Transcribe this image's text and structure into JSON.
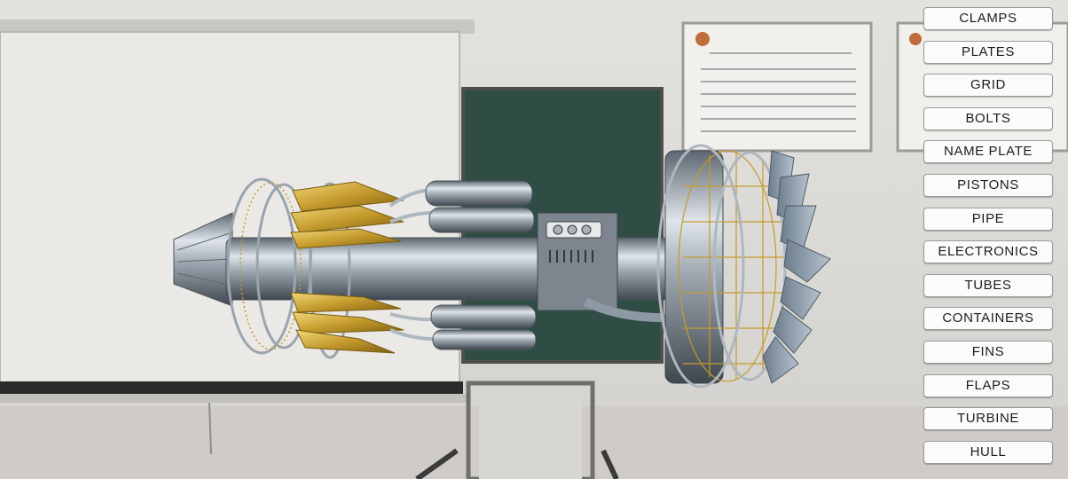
{
  "buttons": [
    {
      "id": "clamps",
      "label": "CLAMPS"
    },
    {
      "id": "plates",
      "label": "PLATES"
    },
    {
      "id": "grid",
      "label": "GRID"
    },
    {
      "id": "bolts",
      "label": "BOLTS"
    },
    {
      "id": "name-plate",
      "label": "NAME PLATE"
    },
    {
      "id": "pistons",
      "label": "PISTONS"
    },
    {
      "id": "pipe",
      "label": "PIPE"
    },
    {
      "id": "electronics",
      "label": "ELECTRONICS"
    },
    {
      "id": "tubes",
      "label": "TUBES"
    },
    {
      "id": "containers",
      "label": "CONTAINERS"
    },
    {
      "id": "fins",
      "label": "FINS"
    },
    {
      "id": "flaps",
      "label": "FLAPS"
    },
    {
      "id": "turbine",
      "label": "TURBINE"
    },
    {
      "id": "hull",
      "label": "HULL"
    }
  ],
  "colors": {
    "wall": "#dedcd8",
    "whiteboard": "#e9e7e3",
    "chalkboard": "#2f4d44",
    "metal": "#8f99a3",
    "gold": "#c9a23a",
    "button_bg": "#fbfbfb",
    "button_text": "#1c1c1c"
  }
}
